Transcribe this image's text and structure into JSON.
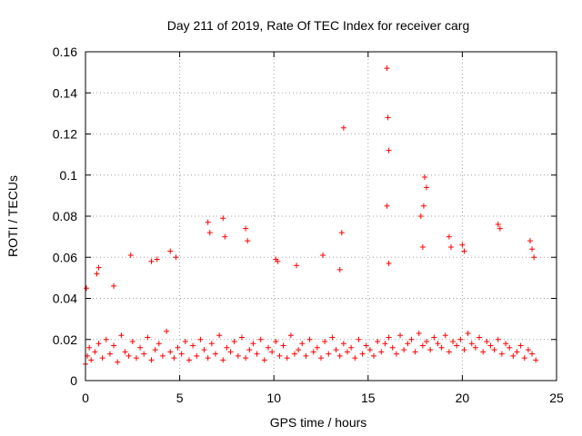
{
  "chart_data": {
    "type": "scatter",
    "title": "Day 211 of 2019, Rate Of TEC Index for receiver carg",
    "xlabel": "GPS time / hours",
    "ylabel": "ROTI / TECUs",
    "xlim": [
      0,
      25
    ],
    "ylim": [
      0,
      0.16
    ],
    "xticks": [
      0,
      5,
      10,
      15,
      20,
      25
    ],
    "xtick_labels": [
      "0",
      "5",
      "10",
      "15",
      "20",
      "25"
    ],
    "yticks": [
      0,
      0.02,
      0.04,
      0.06,
      0.08,
      0.1,
      0.12,
      0.14,
      0.16
    ],
    "ytick_labels": [
      "0",
      "0.02",
      "0.04",
      "0.06",
      "0.08",
      "0.1",
      "0.12",
      "0.14",
      "0.16"
    ],
    "grid": true,
    "marker": "plus",
    "color": "#ff0000",
    "series": [
      {
        "name": "ROTI",
        "x": [
          0.0,
          0.1,
          0.2,
          0.3,
          0.5,
          0.7,
          0.9,
          1.1,
          1.3,
          1.5,
          1.7,
          1.9,
          2.1,
          2.3,
          2.5,
          2.7,
          2.9,
          3.1,
          3.3,
          3.5,
          3.7,
          3.9,
          4.1,
          4.3,
          4.5,
          4.7,
          4.9,
          5.1,
          5.3,
          5.5,
          5.7,
          5.9,
          6.1,
          6.3,
          6.5,
          6.7,
          6.9,
          7.1,
          7.3,
          7.5,
          7.7,
          7.9,
          8.1,
          8.3,
          8.5,
          8.7,
          8.9,
          9.1,
          9.3,
          9.5,
          9.7,
          9.9,
          10.1,
          10.3,
          10.5,
          10.7,
          10.9,
          11.1,
          11.3,
          11.5,
          11.7,
          11.9,
          12.1,
          12.3,
          12.5,
          12.7,
          12.9,
          13.1,
          13.3,
          13.5,
          13.7,
          13.9,
          14.1,
          14.3,
          14.5,
          14.7,
          14.9,
          15.1,
          15.3,
          15.5,
          15.7,
          15.9,
          16.1,
          16.3,
          16.5,
          16.7,
          16.9,
          17.1,
          17.3,
          17.5,
          17.7,
          17.9,
          18.1,
          18.3,
          18.5,
          18.7,
          18.9,
          19.1,
          19.3,
          19.5,
          19.7,
          19.9,
          20.1,
          20.3,
          20.5,
          20.7,
          20.9,
          21.1,
          21.3,
          21.5,
          21.7,
          21.9,
          22.1,
          22.3,
          22.5,
          22.7,
          22.9,
          23.1,
          23.3,
          23.5,
          23.7,
          23.9,
          0.05,
          0.6,
          0.7,
          1.5,
          2.4,
          3.5,
          3.8,
          4.5,
          4.8,
          6.5,
          6.6,
          7.3,
          7.4,
          8.5,
          8.6,
          10.1,
          10.2,
          13.6,
          13.7,
          16.0,
          16.05,
          16.1,
          16.0,
          17.8,
          17.9,
          18.0,
          18.1,
          17.95,
          19.3,
          19.4,
          20.0,
          20.1,
          21.9,
          22.0,
          23.6,
          23.7,
          23.8,
          16.1,
          13.5,
          12.6,
          11.2
        ],
        "y": [
          0.008,
          0.012,
          0.016,
          0.01,
          0.014,
          0.018,
          0.011,
          0.02,
          0.013,
          0.017,
          0.009,
          0.022,
          0.014,
          0.012,
          0.019,
          0.011,
          0.016,
          0.013,
          0.021,
          0.01,
          0.015,
          0.018,
          0.012,
          0.024,
          0.014,
          0.011,
          0.016,
          0.013,
          0.019,
          0.01,
          0.017,
          0.012,
          0.02,
          0.015,
          0.011,
          0.018,
          0.013,
          0.022,
          0.01,
          0.016,
          0.014,
          0.019,
          0.012,
          0.021,
          0.011,
          0.015,
          0.018,
          0.013,
          0.02,
          0.01,
          0.016,
          0.014,
          0.019,
          0.012,
          0.017,
          0.011,
          0.022,
          0.013,
          0.015,
          0.018,
          0.012,
          0.02,
          0.014,
          0.016,
          0.011,
          0.019,
          0.013,
          0.021,
          0.015,
          0.012,
          0.018,
          0.014,
          0.016,
          0.011,
          0.02,
          0.013,
          0.017,
          0.015,
          0.012,
          0.019,
          0.014,
          0.018,
          0.021,
          0.016,
          0.013,
          0.022,
          0.015,
          0.018,
          0.02,
          0.014,
          0.023,
          0.017,
          0.019,
          0.015,
          0.021,
          0.018,
          0.016,
          0.022,
          0.014,
          0.019,
          0.017,
          0.02,
          0.015,
          0.023,
          0.018,
          0.016,
          0.021,
          0.014,
          0.019,
          0.017,
          0.015,
          0.02,
          0.013,
          0.018,
          0.016,
          0.012,
          0.014,
          0.017,
          0.011,
          0.015,
          0.013,
          0.01,
          0.045,
          0.052,
          0.055,
          0.046,
          0.061,
          0.058,
          0.059,
          0.063,
          0.06,
          0.077,
          0.072,
          0.079,
          0.07,
          0.074,
          0.068,
          0.059,
          0.058,
          0.072,
          0.123,
          0.152,
          0.128,
          0.112,
          0.085,
          0.08,
          0.065,
          0.099,
          0.094,
          0.085,
          0.07,
          0.065,
          0.066,
          0.063,
          0.076,
          0.074,
          0.068,
          0.064,
          0.06,
          0.057,
          0.054,
          0.061,
          0.056
        ]
      }
    ]
  }
}
